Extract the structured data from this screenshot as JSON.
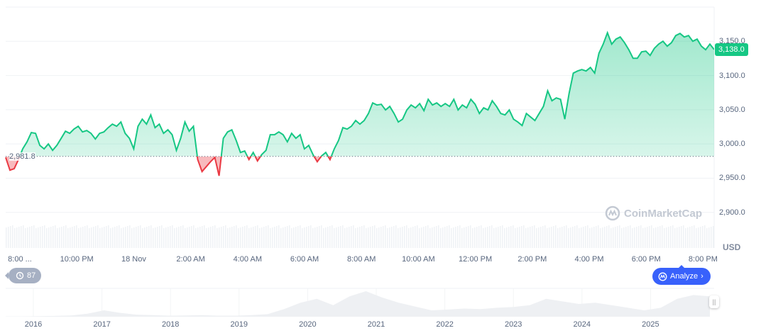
{
  "chart_data": {
    "type": "area",
    "title": "",
    "currency_label": "USD",
    "current_price": "3,138.0",
    "baseline": 2981.8,
    "baseline_label": "2,981.8",
    "ylim": [
      2848,
      3200
    ],
    "yticks": [
      {
        "value": 3150,
        "label": "3,150.0"
      },
      {
        "value": 3100,
        "label": "3,100.0"
      },
      {
        "value": 3050,
        "label": "3,050.0"
      },
      {
        "value": 3000,
        "label": "3,000.0"
      },
      {
        "value": 2950,
        "label": "2,950.0"
      },
      {
        "value": 2900,
        "label": "2,900.0"
      }
    ],
    "xticks": [
      "8:00 ...",
      "10:00 PM",
      "18 Nov",
      "2:00 AM",
      "4:00 AM",
      "6:00 AM",
      "8:00 AM",
      "10:00 AM",
      "12:00 PM",
      "2:00 PM",
      "4:00 PM",
      "6:00 PM",
      "8:00 PM"
    ],
    "grid": true,
    "colors": {
      "up": "#16c784",
      "down": "#ea3943",
      "badge": "#16c784",
      "analyze": "#3861fb"
    },
    "values": [
      2980.3,
      2961.7,
      2963.8,
      2977.2,
      2992.8,
      3003.1,
      3016.6,
      3015.5,
      2997.9,
      2992.8,
      3000,
      2990.7,
      2997.9,
      3008.3,
      3018.6,
      3015.5,
      3021.7,
      3025.9,
      3017.6,
      3019.7,
      3015.5,
      3007.2,
      3015.5,
      3017.6,
      3023.8,
      3029,
      3025.9,
      3032.1,
      3015.5,
      3008.3,
      2992.8,
      3025.9,
      3036.2,
      3029,
      3042.4,
      3023.8,
      3029,
      3015.5,
      3020.7,
      3013.5,
      2990.7,
      3008.3,
      3032.1,
      3018.6,
      3025.9,
      2977.2,
      2959.6,
      2966.9,
      2974.1,
      2980.3,
      2953.4,
      3008.3,
      3017.6,
      3020.7,
      3005.2,
      2987.6,
      2989.7,
      2977.2,
      2987.6,
      2975.2,
      2984.5,
      2990.7,
      3013.5,
      3013.5,
      3017.6,
      3013.5,
      3003.1,
      3015.5,
      3008.3,
      3013.5,
      2992.8,
      2997.9,
      2984.5,
      2974.1,
      2982.4,
      2987.6,
      2977.2,
      2992.8,
      3005.2,
      3023.8,
      3021.7,
      3025.9,
      3034.2,
      3029,
      3034.2,
      3044.5,
      3060,
      3056.9,
      3058,
      3049.7,
      3054.9,
      3044.5,
      3032.1,
      3036.2,
      3049.7,
      3056.9,
      3052.8,
      3059,
      3048.6,
      3065.2,
      3056.9,
      3060,
      3054.9,
      3059,
      3054.9,
      3065.2,
      3049.7,
      3056.9,
      3052.8,
      3065.2,
      3058,
      3044.5,
      3052.8,
      3049.7,
      3063.1,
      3054.9,
      3044.5,
      3042.4,
      3049.7,
      3036.2,
      3032.1,
      3026.9,
      3044.5,
      3039.3,
      3034.2,
      3044.5,
      3054.9,
      3077.6,
      3063.1,
      3067.3,
      3065.2,
      3036.2,
      3073.5,
      3103.5,
      3106.6,
      3108.7,
      3106.6,
      3111.8,
      3103.5,
      3132.5,
      3145.9,
      3162.5,
      3145.9,
      3153.2,
      3156.3,
      3148,
      3137.7,
      3125.2,
      3125.2,
      3134.6,
      3135.6,
      3129.4,
      3139.7,
      3145.9,
      3150.1,
      3142.8,
      3148,
      3158.4,
      3161.5,
      3156.3,
      3158.4,
      3150.1,
      3153.2,
      3142.8,
      3137.7,
      3145.9,
      3138
    ]
  },
  "navigator": {
    "years": [
      "2016",
      "2017",
      "2018",
      "2019",
      "2020",
      "2021",
      "2022",
      "2023",
      "2024",
      "2025"
    ],
    "values": [
      1,
      1,
      2,
      3,
      5,
      12,
      25,
      15,
      8,
      6,
      4,
      5,
      6,
      4,
      4,
      6,
      10,
      30,
      55,
      70,
      45,
      80,
      100,
      75,
      55,
      40,
      25,
      28,
      32,
      30,
      35,
      38,
      45,
      70,
      60,
      50,
      55,
      45,
      35,
      25,
      35,
      70,
      85,
      80
    ]
  },
  "history_button": {
    "label": "87",
    "icon": "history-icon"
  },
  "analyze_button": {
    "label": "Analyze",
    "icon": "cmc-ai-icon"
  },
  "watermark": "CoinMarketCap"
}
